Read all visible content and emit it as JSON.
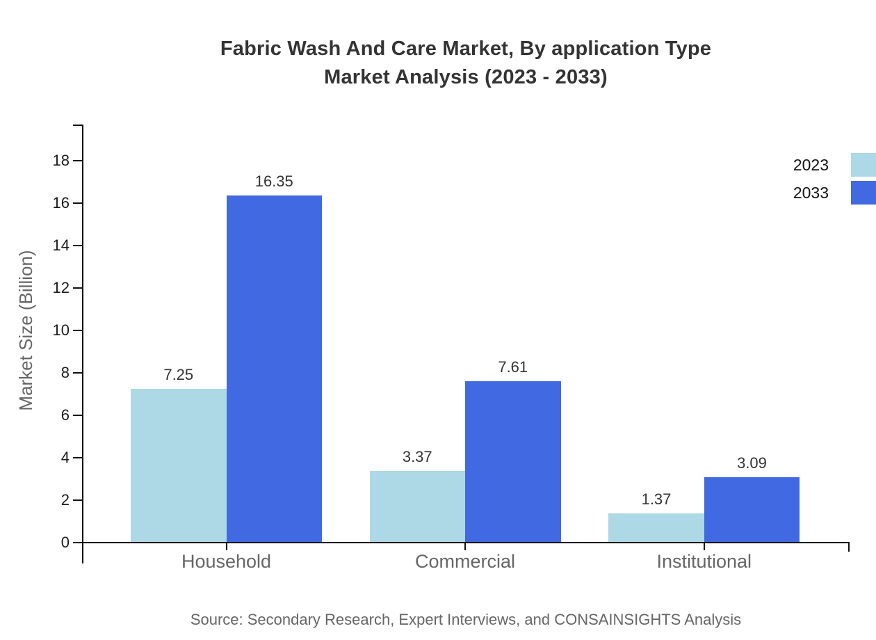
{
  "title": {
    "line1": "Fabric Wash And Care Market, By application Type",
    "line2": "Market Analysis (2023 - 2033)"
  },
  "source": "Source: Secondary Research, Expert Interviews, and CONSAINSIGHTS Analysis",
  "legend": {
    "items": [
      {
        "label": "2023",
        "color": "#ADD8E6"
      },
      {
        "label": "2033",
        "color": "#4169E1"
      }
    ]
  },
  "colors": {
    "series_2023": "#ADD8E6",
    "series_2033": "#4169E1",
    "axis": "#111111",
    "title_text": "#333333",
    "value_label_text": "#333333",
    "tick_label_text": "#1a1a1a",
    "category_label_text": "#666666",
    "y_title_text": "#666666",
    "source_text": "#666666",
    "background": "#ffffff"
  },
  "chart_data": {
    "type": "bar",
    "title": "Fabric Wash And Care Market, By application Type Market Analysis (2023 - 2033)",
    "categories": [
      "Household",
      "Commercial",
      "Institutional"
    ],
    "series": [
      {
        "name": "2023",
        "color": "#ADD8E6",
        "values": [
          7.25,
          3.37,
          1.37
        ],
        "labels": [
          "7.25",
          "3.37",
          "1.37"
        ]
      },
      {
        "name": "2033",
        "color": "#4169E1",
        "values": [
          16.35,
          7.61,
          3.09
        ],
        "labels": [
          "16.35",
          "7.61",
          "3.09"
        ]
      }
    ],
    "xlabel": "",
    "ylabel": "Market Size (Billion)",
    "ylim": [
      0,
      18
    ],
    "ytick_step": 2,
    "ytick_labels": [
      "0",
      "2",
      "4",
      "6",
      "8",
      "10",
      "12",
      "14",
      "16",
      "18"
    ],
    "grid": false,
    "legend_position": "top-right",
    "value_labels_shown": true
  }
}
